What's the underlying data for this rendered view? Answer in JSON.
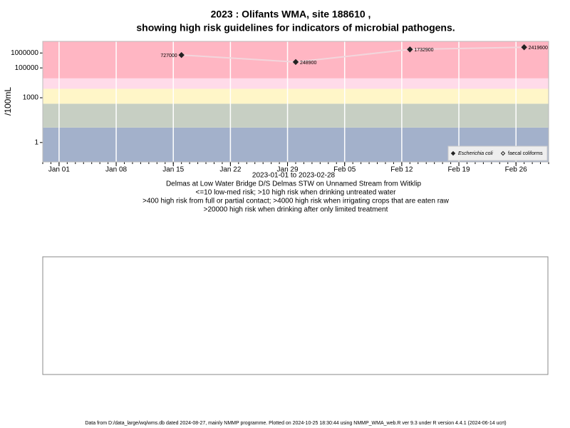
{
  "chart_data": {
    "type": "scatter",
    "title": "2023 : Olifants WMA, site 188610 ,",
    "title_line2": "showing high risk guidelines for indicators of microbial pathogens.",
    "x_label": "2023-01-01 to 2023-02-28",
    "notes": [
      "Delmas at Low Water Bridge D/S Delmas STW on Unnamed Stream from Witklip",
      "<=10 low-med risk; >10 high risk when drinking untreated water",
      ">400 high risk from full or partial contact; >4000 high risk when irrigating crops that are eaten raw",
      ">20000 high risk when drinking after only limited treatment"
    ],
    "y_label": "/100mL",
    "x": [
      "2023-01-16",
      "2023-01-30",
      "2023-02-13",
      "2023-02-27"
    ],
    "series": [
      {
        "name": "Escherichia coli",
        "color": "#222222",
        "values": [
          727000,
          248900,
          1732900,
          2419600
        ]
      },
      {
        "name": "faecal coliforms",
        "color": "#222222",
        "values": [
          null,
          null,
          null,
          null
        ]
      }
    ],
    "line_color": "#f2d6dc",
    "xlim": [
      "2022-12-30",
      "2023-03-02"
    ],
    "xticks": [
      {
        "value": "2023-01-01",
        "label": "Jan 01"
      },
      {
        "value": "2023-01-08",
        "label": "Jan 08"
      },
      {
        "value": "2023-01-15",
        "label": "Jan 15"
      },
      {
        "value": "2023-01-22",
        "label": "Jan 22"
      },
      {
        "value": "2023-01-29",
        "label": "Jan 29"
      },
      {
        "value": "2023-02-05",
        "label": "Feb 05"
      },
      {
        "value": "2023-02-12",
        "label": "Feb 12"
      },
      {
        "value": "2023-02-19",
        "label": "Feb 19"
      },
      {
        "value": "2023-02-26",
        "label": "Feb 26"
      }
    ],
    "ylim": [
      0.05,
      6000000
    ],
    "yticks": [
      1,
      1000,
      100000,
      1000000
    ],
    "log_y": true,
    "grid": true,
    "legend": "bottom-right",
    "band_breaks": [
      10,
      400,
      4000,
      20000
    ],
    "band_colors": [
      "#a3b1cb",
      "#c7cfc3",
      "#fff6c8",
      "#ffdbe9",
      "#ffb6c3"
    ]
  },
  "footer": "Data from D:/data_large/wq/wms.db dated 2024-08-27, mainly NMMP programme. Plotted on 2024-10-25 18:30:44 using NMMP_WMA_web.R ver 9.3 under R version 4.4.1 (2024-06-14 ucrt)"
}
